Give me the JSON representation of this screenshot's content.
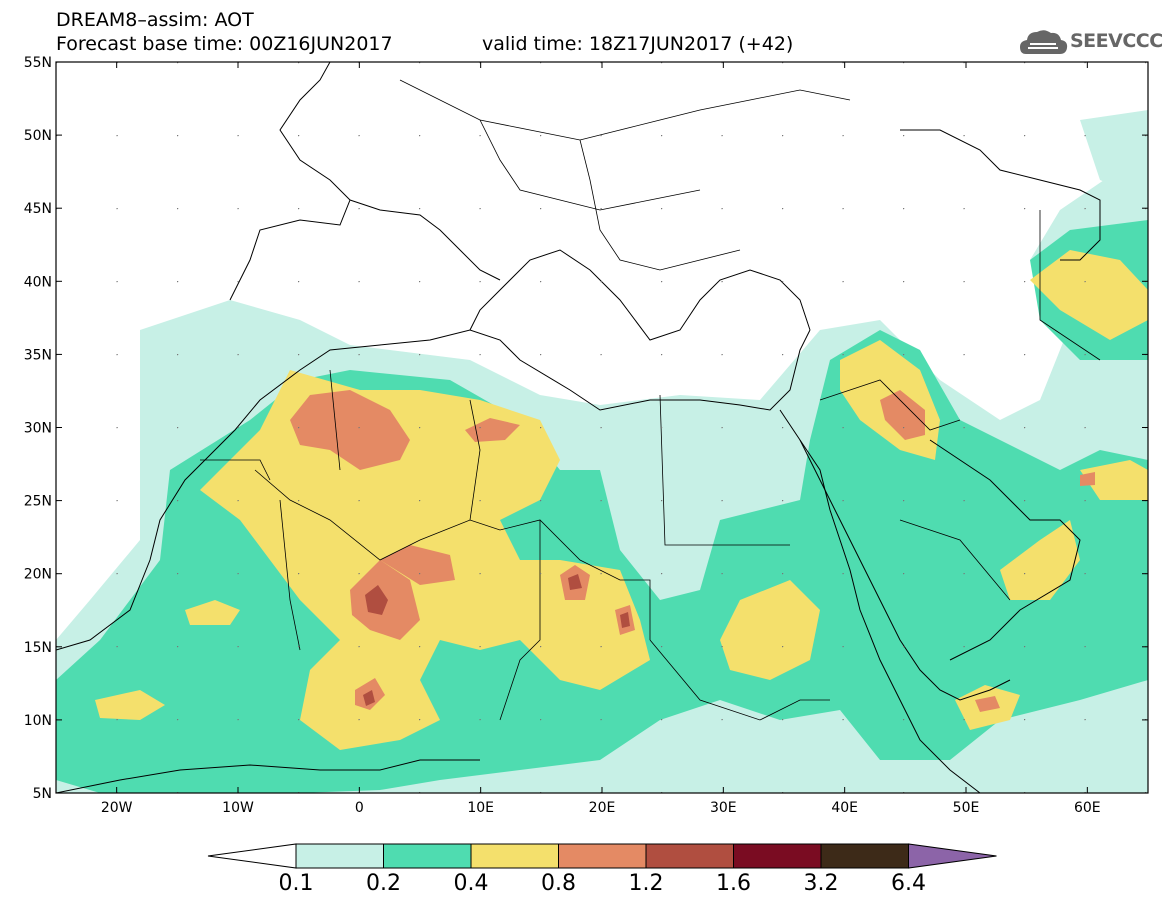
{
  "header": {
    "line1": "DREAM8–assim: AOT",
    "line2": "Forecast base time: 00Z16JUN2017",
    "valid": "valid time: 18Z17JUN2017 (+42)"
  },
  "logo": {
    "text": "SEEVCCC",
    "icon": "cloud-icon"
  },
  "map": {
    "lat_range": [
      5,
      55
    ],
    "lon_range": [
      -25,
      65
    ],
    "lat_labels": [
      "55N",
      "50N",
      "45N",
      "40N",
      "35N",
      "30N",
      "25N",
      "20N",
      "15N",
      "10N",
      "5N"
    ],
    "lon_labels": [
      "20W",
      "10W",
      "0",
      "10E",
      "20E",
      "30E",
      "40E",
      "50E",
      "60E"
    ]
  },
  "colorbar": {
    "levels": [
      "0.1",
      "0.2",
      "0.4",
      "0.8",
      "1.2",
      "1.6",
      "3.2",
      "6.4"
    ],
    "colors": [
      "#ffffff",
      "#c7f0e6",
      "#4fdcb0",
      "#f4e06c",
      "#e48a64",
      "#b04e40",
      "#7a0c22",
      "#3d2a18",
      "#8c64a8"
    ]
  }
}
